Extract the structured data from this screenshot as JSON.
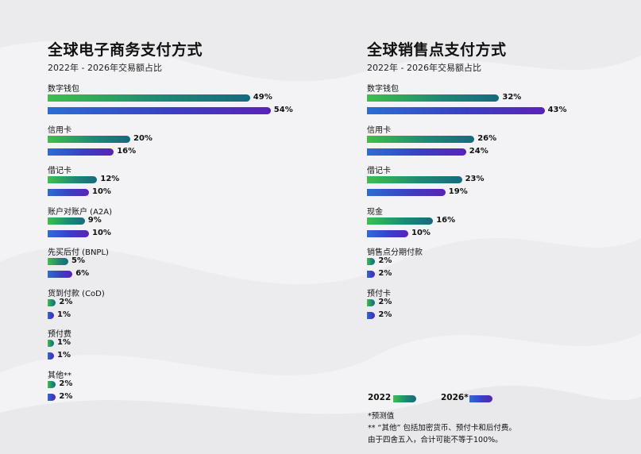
{
  "legend": {
    "y2022": "2022",
    "y2026": "2026*"
  },
  "notes": [
    "*预测值",
    "** “其他” 包括加密货币、预付卡和后付费。",
    "由于四舍五入，合计可能不等于100%。"
  ],
  "chart_data": [
    {
      "type": "bar",
      "orientation": "horizontal",
      "title": "全球电子商务支付方式",
      "subtitle": "2022年 - 2026年交易额占比",
      "categories": [
        "数字钱包",
        "信用卡",
        "借记卡",
        "账户对账户 (A2A)",
        "先买后付 (BNPL)",
        "货到付款 (CoD)",
        "预付费",
        "其他**"
      ],
      "series": [
        {
          "name": "2022",
          "values": [
            49,
            20,
            12,
            9,
            5,
            2,
            1,
            2
          ]
        },
        {
          "name": "2026*",
          "values": [
            54,
            16,
            10,
            10,
            6,
            1,
            1,
            2
          ]
        }
      ],
      "unit": "%"
    },
    {
      "type": "bar",
      "orientation": "horizontal",
      "title": "全球销售点支付方式",
      "subtitle": "2022年 - 2026年交易额占比",
      "categories": [
        "数字钱包",
        "信用卡",
        "借记卡",
        "现金",
        "销售点分期付款",
        "预付卡"
      ],
      "series": [
        {
          "name": "2022",
          "values": [
            32,
            26,
            23,
            16,
            2,
            2
          ]
        },
        {
          "name": "2026*",
          "values": [
            43,
            24,
            19,
            10,
            2,
            2
          ]
        }
      ],
      "unit": "%"
    }
  ]
}
